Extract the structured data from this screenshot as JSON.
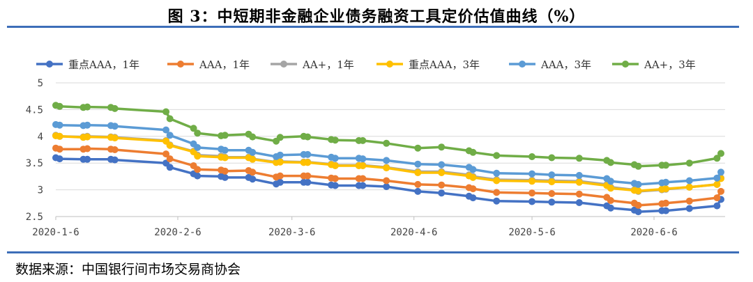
{
  "title": "图 3：中短期非金融企业债务融资工具定价估值曲线（%）",
  "source": "数据来源：中国银行间市场交易商协会",
  "chart_data": {
    "type": "line",
    "x_labels": [
      "2020-1-6",
      "2020-2-6",
      "2020-3-6",
      "2020-4-6",
      "2020-5-6",
      "2020-6-6"
    ],
    "ylim": [
      2.5,
      5
    ],
    "yticks": [
      "5",
      "4.5",
      "4",
      "3.5",
      "3",
      "2.5"
    ],
    "ytick_values": [
      5,
      4.5,
      4,
      3.5,
      3,
      2.5
    ],
    "grid": true,
    "legend_position": "top",
    "dates": [
      "2020-01-06",
      "2020-01-07",
      "2020-01-13",
      "2020-01-14",
      "2020-01-20",
      "2020-01-21",
      "2020-02-03",
      "2020-02-04",
      "2020-02-10",
      "2020-02-11",
      "2020-02-17",
      "2020-02-18",
      "2020-02-24",
      "2020-02-25",
      "2020-03-02",
      "2020-03-03",
      "2020-03-09",
      "2020-03-10",
      "2020-03-16",
      "2020-03-17",
      "2020-03-23",
      "2020-03-24",
      "2020-03-30",
      "2020-04-07",
      "2020-04-13",
      "2020-04-20",
      "2020-04-21",
      "2020-04-27",
      "2020-05-06",
      "2020-05-11",
      "2020-05-18",
      "2020-05-25",
      "2020-05-26",
      "2020-06-01",
      "2020-06-02",
      "2020-06-08",
      "2020-06-09",
      "2020-06-15",
      "2020-06-22",
      "2020-06-23"
    ],
    "series": [
      {
        "name": "重点AAA，1年",
        "color": "#4472c4",
        "values": [
          3.6,
          3.58,
          3.57,
          3.57,
          3.57,
          3.56,
          3.5,
          3.42,
          3.3,
          3.26,
          3.25,
          3.23,
          3.23,
          3.2,
          3.11,
          3.14,
          3.14,
          3.14,
          3.09,
          3.08,
          3.08,
          3.08,
          3.06,
          2.97,
          2.94,
          2.88,
          2.85,
          2.79,
          2.78,
          2.77,
          2.76,
          2.7,
          2.66,
          2.62,
          2.59,
          2.61,
          2.61,
          2.65,
          2.7,
          2.82
        ]
      },
      {
        "name": "AAA，1年",
        "color": "#ed7d31",
        "values": [
          3.78,
          3.76,
          3.76,
          3.77,
          3.76,
          3.75,
          3.67,
          3.58,
          3.45,
          3.38,
          3.37,
          3.35,
          3.36,
          3.33,
          3.24,
          3.26,
          3.26,
          3.26,
          3.22,
          3.21,
          3.21,
          3.21,
          3.17,
          3.1,
          3.09,
          3.04,
          3.02,
          2.95,
          2.94,
          2.93,
          2.92,
          2.86,
          2.8,
          2.75,
          2.71,
          2.74,
          2.75,
          2.79,
          2.85,
          2.97
        ]
      },
      {
        "name": "AA+，1年",
        "color": "#a5a5a5",
        "values": [
          4.02,
          4.0,
          3.99,
          4.0,
          3.99,
          3.98,
          3.92,
          3.84,
          3.72,
          3.65,
          3.63,
          3.61,
          3.61,
          3.58,
          3.52,
          3.53,
          3.52,
          3.52,
          3.48,
          3.46,
          3.46,
          3.46,
          3.42,
          3.34,
          3.34,
          3.28,
          3.25,
          3.19,
          3.18,
          3.17,
          3.16,
          3.1,
          3.05,
          3.0,
          2.97,
          3.0,
          3.01,
          3.05,
          3.1,
          3.22
        ]
      },
      {
        "name": "重点AAA，3年",
        "color": "#ffc000",
        "values": [
          4.01,
          4.0,
          3.98,
          3.99,
          3.98,
          3.97,
          3.91,
          3.83,
          3.71,
          3.63,
          3.61,
          3.6,
          3.6,
          3.57,
          3.51,
          3.52,
          3.51,
          3.51,
          3.47,
          3.45,
          3.45,
          3.45,
          3.41,
          3.32,
          3.32,
          3.26,
          3.23,
          3.17,
          3.16,
          3.15,
          3.14,
          3.08,
          3.03,
          2.99,
          2.98,
          3.01,
          3.02,
          3.05,
          3.1,
          3.21
        ]
      },
      {
        "name": "AAA，3年",
        "color": "#5b9bd5",
        "values": [
          4.22,
          4.21,
          4.2,
          4.21,
          4.2,
          4.19,
          4.12,
          4.02,
          3.86,
          3.79,
          3.76,
          3.74,
          3.74,
          3.7,
          3.62,
          3.65,
          3.66,
          3.66,
          3.61,
          3.59,
          3.59,
          3.58,
          3.55,
          3.48,
          3.47,
          3.42,
          3.38,
          3.31,
          3.3,
          3.28,
          3.27,
          3.21,
          3.16,
          3.12,
          3.1,
          3.13,
          3.14,
          3.17,
          3.22,
          3.33
        ]
      },
      {
        "name": "AA+，3年",
        "color": "#70ad47",
        "values": [
          4.58,
          4.56,
          4.54,
          4.55,
          4.54,
          4.52,
          4.46,
          4.33,
          4.15,
          4.06,
          4.01,
          4.02,
          4.04,
          3.99,
          3.91,
          3.98,
          4.0,
          3.99,
          3.94,
          3.93,
          3.92,
          3.92,
          3.87,
          3.78,
          3.8,
          3.73,
          3.7,
          3.64,
          3.62,
          3.6,
          3.59,
          3.55,
          3.51,
          3.47,
          3.44,
          3.46,
          3.46,
          3.5,
          3.59,
          3.68
        ]
      }
    ]
  }
}
